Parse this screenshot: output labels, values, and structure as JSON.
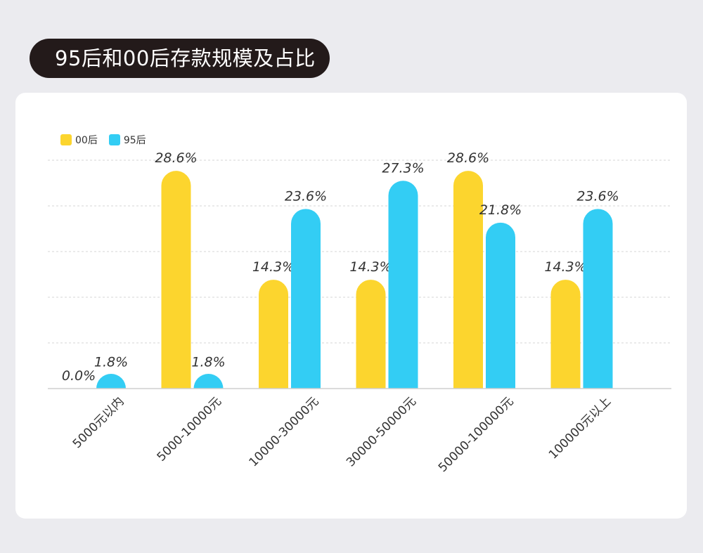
{
  "title": "95后和00后存款规模及占比",
  "chart_data": {
    "type": "bar",
    "categories": [
      "5000元以内",
      "5000-10000元",
      "10000-30000元",
      "30000-50000元",
      "50000-100000元",
      "100000元以上"
    ],
    "series": [
      {
        "name": "00后",
        "color": "#fcd52e",
        "values": [
          0.0,
          28.6,
          14.3,
          14.3,
          28.6,
          14.3
        ],
        "labels": [
          "0.0%",
          "28.6%",
          "14.3%",
          "14.3%",
          "28.6%",
          "14.3%"
        ]
      },
      {
        "name": "95后",
        "color": "#33cdf4",
        "values": [
          1.8,
          1.8,
          23.6,
          27.3,
          21.8,
          23.6
        ],
        "labels": [
          "1.8%",
          "1.8%",
          "23.6%",
          "27.3%",
          "21.8%",
          "23.6%"
        ]
      }
    ],
    "ylim": [
      0,
      30
    ],
    "grid": true,
    "legend_position": "top-left"
  }
}
